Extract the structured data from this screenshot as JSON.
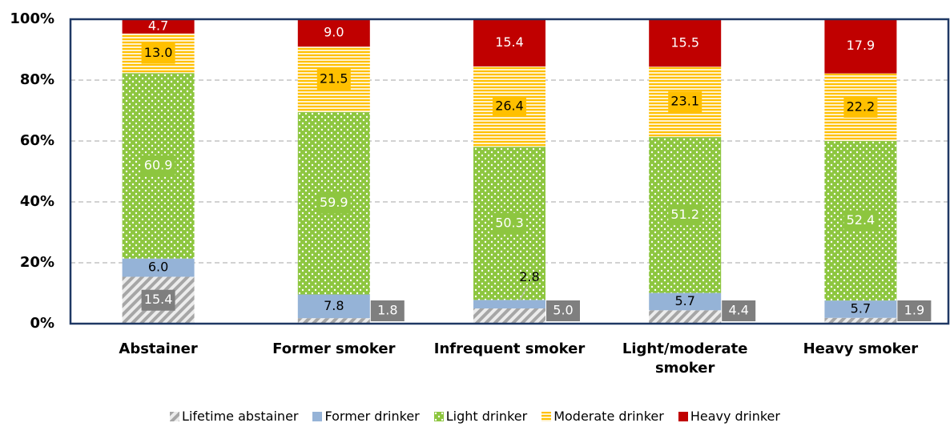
{
  "chart_data": {
    "type": "stacked_bar",
    "categories": [
      "Abstainer",
      "Former smoker",
      "Infrequent smoker",
      "Light/moderate smoker",
      "Heavy smoker"
    ],
    "series": [
      {
        "name": "Lifetime abstainer",
        "color": "#a6a6a6",
        "pattern": "hatch",
        "values": [
          15.4,
          1.8,
          5.0,
          4.4,
          1.9
        ],
        "value_labels": [
          "15.4",
          "1.8",
          "5.0",
          "4.4",
          "1.9"
        ]
      },
      {
        "name": "Former drinker",
        "color": "#95b3d7",
        "pattern": "solid",
        "values": [
          6.0,
          7.8,
          2.8,
          5.7,
          5.7
        ],
        "value_labels": [
          "6.0",
          "7.8",
          "2.8",
          "5.7",
          "5.7"
        ]
      },
      {
        "name": "Light drinker",
        "color": "#8dc63f",
        "pattern": "dots",
        "values": [
          60.9,
          59.9,
          50.3,
          51.2,
          52.4
        ],
        "value_labels": [
          "60.9",
          "59.9",
          "50.3",
          "51.2",
          "52.4"
        ]
      },
      {
        "name": "Moderate drinker",
        "color": "#ffc000",
        "pattern": "stripes",
        "values": [
          13.0,
          21.5,
          26.4,
          23.1,
          22.2
        ],
        "value_labels": [
          "13.0",
          "21.5",
          "26.4",
          "23.1",
          "22.2"
        ]
      },
      {
        "name": "Heavy drinker",
        "color": "#c00000",
        "pattern": "solid",
        "values": [
          4.7,
          9.0,
          15.4,
          15.5,
          17.9
        ],
        "value_labels": [
          "4.7",
          "9.0",
          "15.4",
          "15.5",
          "17.9"
        ]
      }
    ],
    "ylim": [
      0,
      100
    ],
    "yticks": [
      {
        "value": 0,
        "label": "0%"
      },
      {
        "value": 20,
        "label": "20%"
      },
      {
        "value": 40,
        "label": "40%"
      },
      {
        "value": 60,
        "label": "60%"
      },
      {
        "value": 80,
        "label": "80%"
      },
      {
        "value": 100,
        "label": "100%"
      }
    ],
    "grid": true,
    "legend": "bottom"
  }
}
